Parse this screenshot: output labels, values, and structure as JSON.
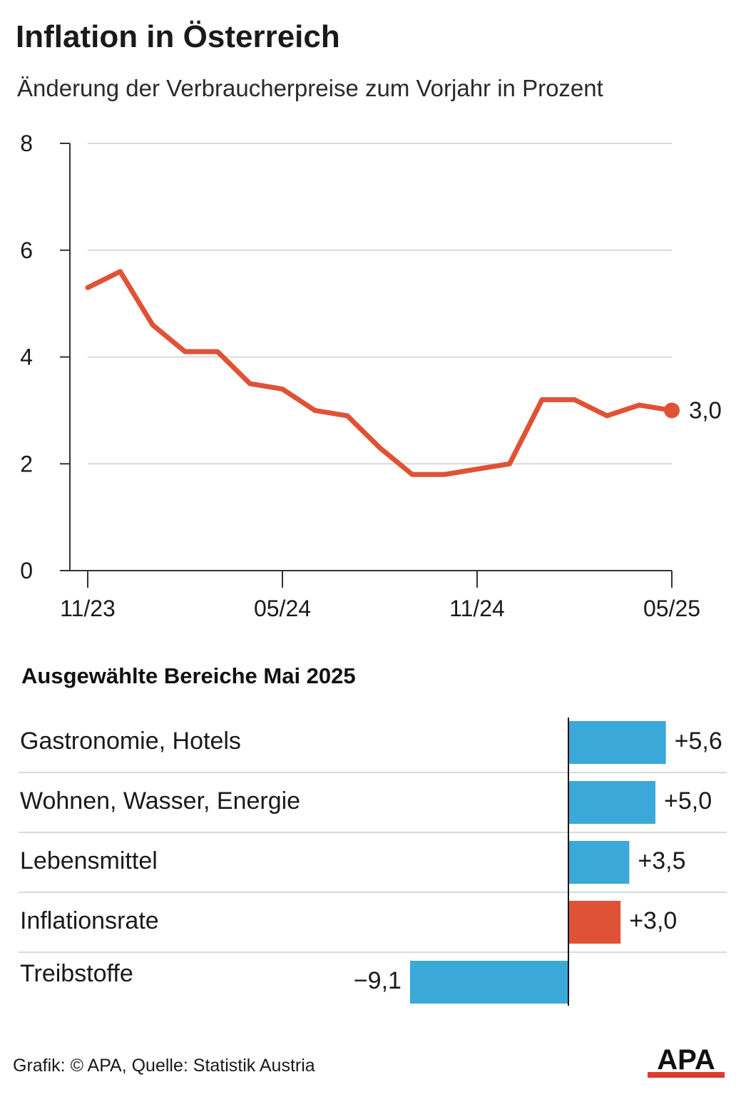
{
  "header": {
    "title": "Inflation in Österreich",
    "subtitle": "Änderung der Verbraucherpreise zum Vorjahr in Prozent"
  },
  "colors": {
    "line": "#e05236",
    "bar_positive": "#3aa8d8",
    "bar_highlight": "#e05236",
    "grid": "#d9d9d9",
    "axis": "#333333"
  },
  "chart_data": [
    {
      "type": "line",
      "x": [
        "11/23",
        "12/23",
        "01/24",
        "02/24",
        "03/24",
        "04/24",
        "05/24",
        "06/24",
        "07/24",
        "08/24",
        "09/24",
        "10/24",
        "11/24",
        "12/24",
        "01/25",
        "02/25",
        "03/25",
        "04/25",
        "05/25"
      ],
      "series": [
        {
          "values": [
            5.3,
            5.6,
            4.6,
            4.1,
            4.1,
            3.5,
            3.4,
            3.0,
            2.9,
            2.3,
            1.8,
            1.8,
            1.9,
            2.0,
            3.2,
            3.2,
            2.9,
            3.1,
            3.0
          ]
        }
      ],
      "xtick_labels": [
        "11/23",
        "05/24",
        "11/24",
        "05/25"
      ],
      "yticks": [
        "0",
        "2",
        "4",
        "6",
        "8"
      ],
      "ylim": [
        0,
        8
      ],
      "grid": true,
      "end_label": "3,0"
    },
    {
      "type": "bar",
      "orientation": "horizontal",
      "title": "Ausgewählte Bereiche Mai 2025",
      "categories": [
        "Gastronomie, Hotels",
        "Wohnen, Wasser, Energie",
        "Lebensmittel",
        "Inflationsrate",
        "Treibstoffe"
      ],
      "values": [
        5.6,
        5.0,
        3.5,
        3.0,
        -9.1
      ],
      "value_labels": [
        "+5,6",
        "+5,0",
        "+3,5",
        "+3,0",
        "−9,1"
      ],
      "highlight": "Inflationsrate"
    }
  ],
  "footer": {
    "source": "Grafik: © APA, Quelle: Statistik Austria",
    "logo_text": "APA"
  }
}
